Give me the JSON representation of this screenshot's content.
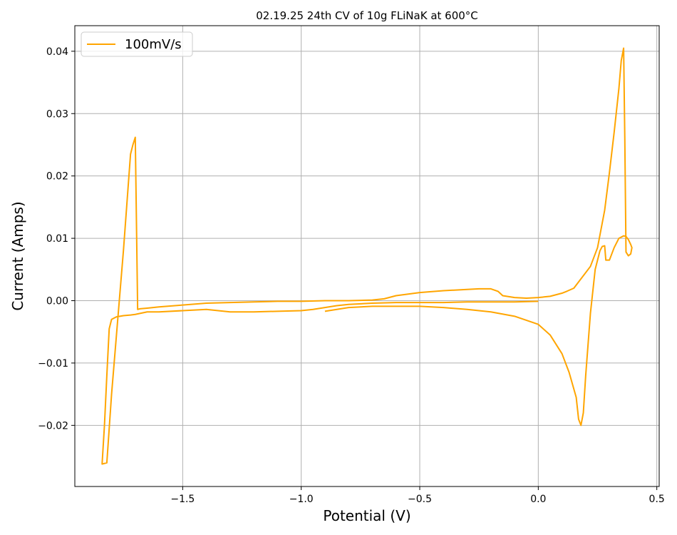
{
  "chart_data": {
    "type": "line",
    "title": "02.19.25 24th CV of 10g FLiNaK at 600°C",
    "xlabel": "Potential (V)",
    "ylabel": "Current (Amps)",
    "xlim": [
      -1.955,
      0.51
    ],
    "ylim": [
      -0.0298,
      0.0441
    ],
    "grid": true,
    "legend_position": "top-left",
    "x_ticks": [
      -1.5,
      -1.0,
      -0.5,
      0.0,
      0.5
    ],
    "x_tick_labels": [
      "−1.5",
      "−1.0",
      "−0.5",
      "0.0",
      "0.5"
    ],
    "y_ticks": [
      -0.02,
      -0.01,
      0.0,
      0.01,
      0.02,
      0.03,
      0.04
    ],
    "y_tick_labels": [
      "−0.02",
      "−0.01",
      "0.00",
      "0.01",
      "0.02",
      "0.03",
      "0.04"
    ],
    "series": [
      {
        "name": "100mV/s",
        "color": "#ffa500",
        "x": [
          -0.9,
          -0.85,
          -0.8,
          -0.7,
          -0.6,
          -0.5,
          -0.4,
          -0.3,
          -0.2,
          -0.1,
          0.0,
          0.05,
          0.1,
          0.13,
          0.16,
          0.17,
          0.18,
          0.19,
          0.2,
          0.22,
          0.24,
          0.26,
          0.27,
          0.28,
          0.285,
          0.3,
          0.32,
          0.34,
          0.36,
          0.37,
          0.38,
          0.39,
          0.395,
          0.39,
          0.38,
          0.375,
          0.37,
          0.365,
          0.36,
          0.35,
          0.34,
          0.32,
          0.3,
          0.28,
          0.25,
          0.22,
          0.2,
          0.17,
          0.15,
          0.12,
          0.1,
          0.07,
          0.05,
          0.0,
          -0.05,
          -0.1,
          -0.15,
          -0.17,
          -0.2,
          -0.25,
          -0.3,
          -0.4,
          -0.5,
          -0.6,
          -0.65,
          -0.7,
          -0.8,
          -0.9,
          -1.0,
          -1.1,
          -1.2,
          -1.3,
          -1.4,
          -1.5,
          -1.6,
          -1.65,
          -1.68,
          -1.69,
          -1.7,
          -1.71,
          -1.72,
          -1.75,
          -1.8,
          -1.82,
          -1.84,
          -1.83,
          -1.82,
          -1.81,
          -1.8,
          -1.78,
          -1.75,
          -1.72,
          -1.7,
          -1.65,
          -1.6,
          -1.5,
          -1.45,
          -1.4,
          -1.35,
          -1.3,
          -1.2,
          -1.1,
          -1.0,
          -0.95,
          -0.9,
          -0.85,
          -0.8,
          -0.7,
          -0.6,
          -0.5,
          -0.4,
          -0.3,
          -0.2,
          -0.1,
          0.0
        ],
        "y": [
          -0.0017,
          -0.0014,
          -0.0011,
          -0.0009,
          -0.0009,
          -0.0009,
          -0.0011,
          -0.0014,
          -0.0018,
          -0.0025,
          -0.0038,
          -0.0055,
          -0.0085,
          -0.0115,
          -0.0155,
          -0.019,
          -0.02,
          -0.018,
          -0.012,
          -0.002,
          0.005,
          0.008,
          0.0087,
          0.0088,
          0.0065,
          0.0065,
          0.0085,
          0.01,
          0.0104,
          0.0103,
          0.0098,
          0.009,
          0.0085,
          0.0075,
          0.0072,
          0.0075,
          0.0078,
          0.026,
          0.0405,
          0.0385,
          0.034,
          0.027,
          0.0205,
          0.0145,
          0.0085,
          0.0055,
          0.0045,
          0.003,
          0.002,
          0.0015,
          0.0012,
          0.0009,
          0.0007,
          0.0005,
          0.0004,
          0.0005,
          0.0008,
          0.0015,
          0.0019,
          0.0019,
          0.0018,
          0.0016,
          0.0013,
          0.0008,
          0.0003,
          0.0001,
          0.0,
          0.0,
          -0.0001,
          -0.0001,
          -0.0002,
          -0.0003,
          -0.0004,
          -0.0007,
          -0.001,
          -0.0012,
          -0.0013,
          -0.0014,
          0.0262,
          0.025,
          0.0235,
          0.008,
          -0.015,
          -0.026,
          -0.0262,
          -0.02,
          -0.012,
          -0.0045,
          -0.003,
          -0.0026,
          -0.0024,
          -0.0023,
          -0.0022,
          -0.0018,
          -0.0018,
          -0.0016,
          -0.0015,
          -0.0014,
          -0.0016,
          -0.0018,
          -0.0018,
          -0.0017,
          -0.0016,
          -0.0014,
          -0.0011,
          -0.0008,
          -0.0006,
          -0.0004,
          -0.0003,
          -0.0003,
          -0.0003,
          -0.0002,
          -0.0002,
          -0.0002,
          -0.0001
        ]
      }
    ]
  }
}
